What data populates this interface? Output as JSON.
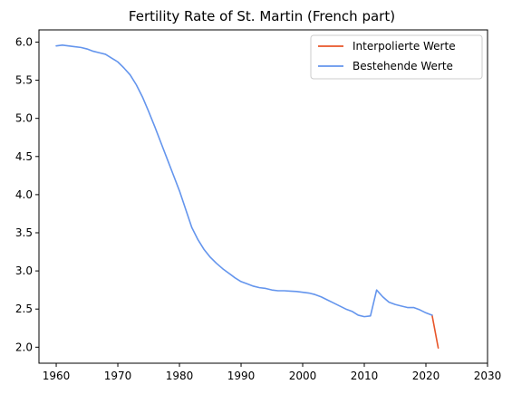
{
  "chart_data": {
    "type": "line",
    "title": "Fertility Rate of St. Martin (French part)",
    "xlabel": "",
    "ylabel": "",
    "xlim": [
      1957.2,
      2030
    ],
    "ylim": [
      1.79,
      6.16
    ],
    "x_ticks": [
      "1960",
      "1970",
      "1980",
      "1990",
      "2000",
      "2010",
      "2020",
      "2030"
    ],
    "y_ticks": [
      "2.0",
      "2.5",
      "3.0",
      "3.5",
      "4.0",
      "4.5",
      "5.0",
      "5.5",
      "6.0"
    ],
    "grid": false,
    "legend_position": "top-right",
    "series": [
      {
        "name": "Interpolierte Werte",
        "color": "#e8562a",
        "x": [
          2021,
          2022
        ],
        "y": [
          2.42,
          1.99
        ]
      },
      {
        "name": "Bestehende Werte",
        "color": "#6495ed",
        "x": [
          1960,
          1961,
          1962,
          1963,
          1964,
          1965,
          1966,
          1967,
          1968,
          1969,
          1970,
          1971,
          1972,
          1973,
          1974,
          1975,
          1976,
          1977,
          1978,
          1979,
          1980,
          1981,
          1982,
          1983,
          1984,
          1985,
          1986,
          1987,
          1988,
          1989,
          1990,
          1991,
          1992,
          1993,
          1994,
          1995,
          1996,
          1997,
          1998,
          1999,
          2000,
          2001,
          2002,
          2003,
          2004,
          2005,
          2006,
          2007,
          2008,
          2009,
          2010,
          2011,
          2012,
          2013,
          2014,
          2015,
          2016,
          2017,
          2018,
          2019,
          2020,
          2021
        ],
        "y": [
          5.95,
          5.96,
          5.95,
          5.94,
          5.93,
          5.91,
          5.88,
          5.86,
          5.84,
          5.79,
          5.74,
          5.66,
          5.57,
          5.44,
          5.28,
          5.09,
          4.89,
          4.68,
          4.47,
          4.26,
          4.05,
          3.81,
          3.57,
          3.41,
          3.28,
          3.18,
          3.1,
          3.03,
          2.97,
          2.91,
          2.86,
          2.83,
          2.8,
          2.78,
          2.77,
          2.75,
          2.74,
          2.74,
          2.735,
          2.73,
          2.72,
          2.71,
          2.69,
          2.66,
          2.62,
          2.58,
          2.54,
          2.5,
          2.47,
          2.42,
          2.4,
          2.41,
          2.75,
          2.66,
          2.59,
          2.56,
          2.54,
          2.52,
          2.52,
          2.49,
          2.45,
          2.42
        ]
      }
    ]
  }
}
